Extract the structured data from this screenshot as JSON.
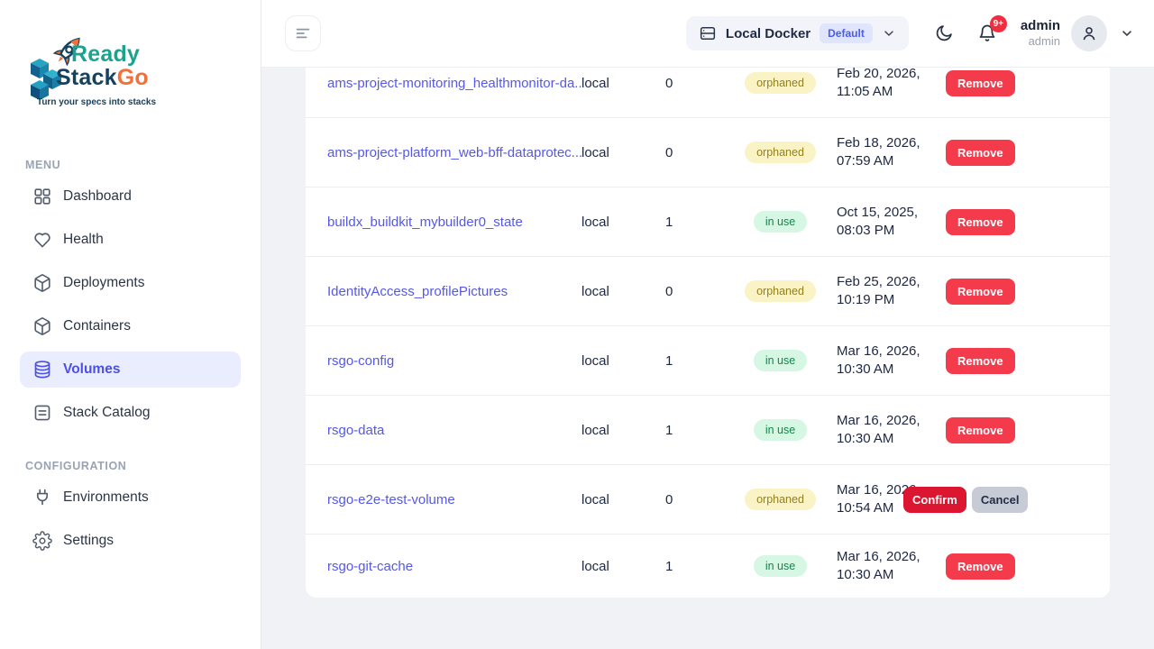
{
  "sidebar": {
    "logo": {
      "line1": "Ready",
      "line2_part1": "Stack",
      "line2_part2": "Go",
      "tagline": "Turn your specs into stacks"
    },
    "sections": [
      {
        "label": "MENU",
        "items": [
          {
            "label": "Dashboard",
            "icon": "grid-icon",
            "active": false
          },
          {
            "label": "Health",
            "icon": "heart-icon",
            "active": false
          },
          {
            "label": "Deployments",
            "icon": "cube-icon",
            "active": false
          },
          {
            "label": "Containers",
            "icon": "cube-icon",
            "active": false
          },
          {
            "label": "Volumes",
            "icon": "database-icon",
            "active": true
          },
          {
            "label": "Stack Catalog",
            "icon": "document-icon",
            "active": false
          }
        ]
      },
      {
        "label": "CONFIGURATION",
        "items": [
          {
            "label": "Environments",
            "icon": "plug-icon",
            "active": false
          },
          {
            "label": "Settings",
            "icon": "gear-icon",
            "active": false
          }
        ]
      }
    ]
  },
  "topbar": {
    "menu_button_icon": "menu-icon",
    "env_selector": {
      "icon": "server-icon",
      "label": "Local Docker",
      "badge": "Default",
      "chevron": "chevron-down-icon"
    },
    "theme_toggle_icon": "moon-icon",
    "notifications": {
      "icon": "bell-icon",
      "count": "9+"
    },
    "user": {
      "name": "admin",
      "role": "admin",
      "avatar_icon": "person-icon",
      "chevron": "chevron-down-icon"
    }
  },
  "table": {
    "rows": [
      {
        "name": "ams-project-monitoring_healthmonitor-da...",
        "driver": "local",
        "containers": "0",
        "status": "orphaned",
        "created": [
          "Feb 20, 2026,",
          "11:05 AM"
        ],
        "actions": [
          {
            "label": "Remove",
            "type": "remove"
          }
        ]
      },
      {
        "name": "ams-project-platform_web-bff-dataprotec...",
        "driver": "local",
        "containers": "0",
        "status": "orphaned",
        "created": [
          "Feb 18, 2026,",
          "07:59 AM"
        ],
        "actions": [
          {
            "label": "Remove",
            "type": "remove"
          }
        ]
      },
      {
        "name": "buildx_buildkit_mybuilder0_state",
        "driver": "local",
        "containers": "1",
        "status": "in use",
        "created": [
          "Oct 15, 2025,",
          "08:03 PM"
        ],
        "actions": [
          {
            "label": "Remove",
            "type": "remove"
          }
        ]
      },
      {
        "name": "IdentityAccess_profilePictures",
        "driver": "local",
        "containers": "0",
        "status": "orphaned",
        "created": [
          "Feb 25, 2026,",
          "10:19 PM"
        ],
        "actions": [
          {
            "label": "Remove",
            "type": "remove"
          }
        ]
      },
      {
        "name": "rsgo-config",
        "driver": "local",
        "containers": "1",
        "status": "in use",
        "created": [
          "Mar 16, 2026,",
          "10:30 AM"
        ],
        "actions": [
          {
            "label": "Remove",
            "type": "remove"
          }
        ]
      },
      {
        "name": "rsgo-data",
        "driver": "local",
        "containers": "1",
        "status": "in use",
        "created": [
          "Mar 16, 2026,",
          "10:30 AM"
        ],
        "actions": [
          {
            "label": "Remove",
            "type": "remove"
          }
        ]
      },
      {
        "name": "rsgo-e2e-test-volume",
        "driver": "local",
        "containers": "0",
        "status": "orphaned",
        "created": [
          "Mar 16, 2026,",
          "10:54 AM"
        ],
        "actions": [
          {
            "label": "Confirm",
            "type": "confirm"
          },
          {
            "label": "Cancel",
            "type": "cancel"
          }
        ]
      },
      {
        "name": "rsgo-git-cache",
        "driver": "local",
        "containers": "1",
        "status": "in use",
        "created": [
          "Mar 16, 2026,",
          "10:30 AM"
        ],
        "actions": [
          {
            "label": "Remove",
            "type": "remove"
          }
        ]
      }
    ]
  },
  "colors": {
    "accent": "#4d50e6",
    "link": "#5558e8",
    "remove_red": "#f43b4c",
    "confirm_red": "#dc1530",
    "cancel_gray": "#c6cbd5",
    "badge_orphaned_bg": "#faf3c5",
    "badge_orphaned_text": "#94801c",
    "badge_inuse_bg": "#d5f7e3",
    "badge_inuse_text": "#16854d",
    "notification_red": "#f12d3e",
    "logo_teal": "#1ba390",
    "logo_navy": "#16425f",
    "logo_orange": "#f2703a"
  }
}
